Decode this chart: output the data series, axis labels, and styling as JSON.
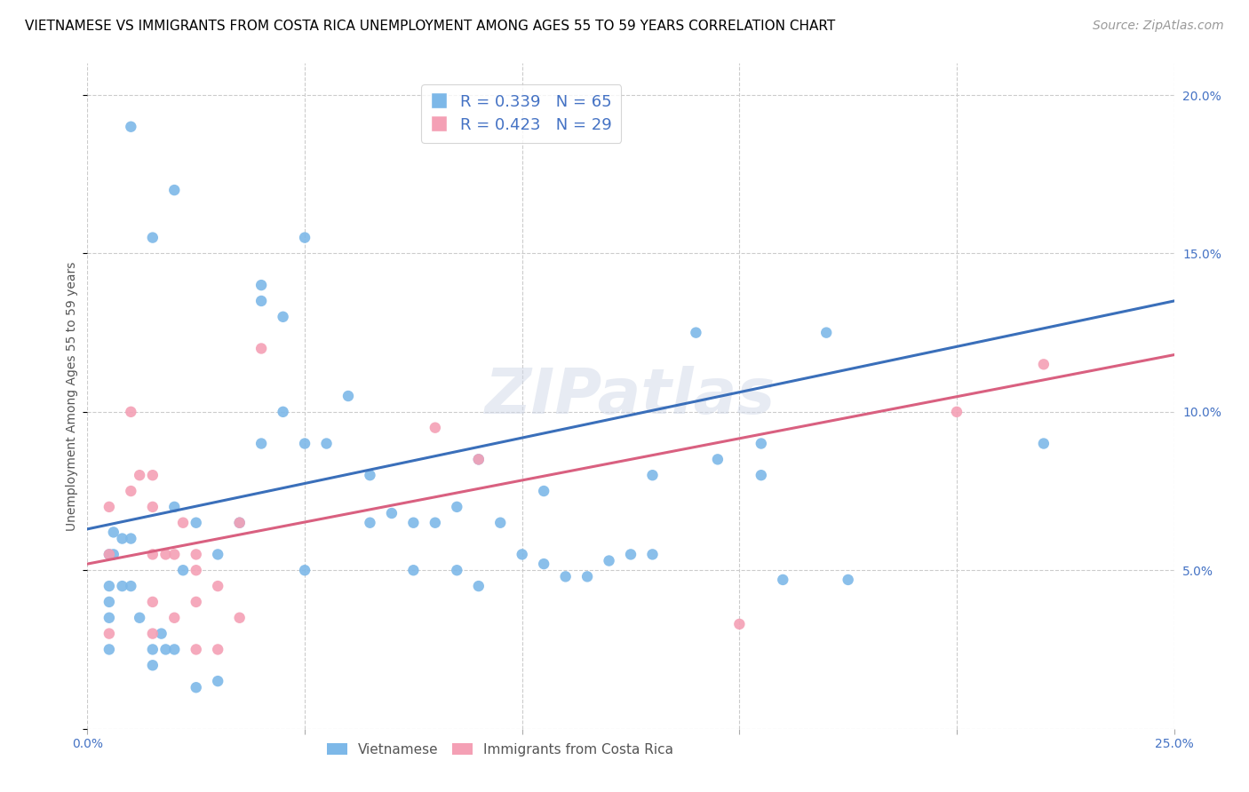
{
  "title": "VIETNAMESE VS IMMIGRANTS FROM COSTA RICA UNEMPLOYMENT AMONG AGES 55 TO 59 YEARS CORRELATION CHART",
  "source": "Source: ZipAtlas.com",
  "ylabel": "Unemployment Among Ages 55 to 59 years",
  "xlim": [
    0.0,
    0.25
  ],
  "ylim": [
    0.0,
    0.21
  ],
  "xticks": [
    0.0,
    0.05,
    0.1,
    0.15,
    0.2,
    0.25
  ],
  "yticks": [
    0.0,
    0.05,
    0.1,
    0.15,
    0.2
  ],
  "watermark": "ZIPatlas",
  "legend_r1": "R = 0.339",
  "legend_n1": "N = 65",
  "legend_r2": "R = 0.423",
  "legend_n2": "N = 29",
  "legend1_label": "Vietnamese",
  "legend2_label": "Immigrants from Costa Rica",
  "color_blue": "#7db8e8",
  "color_pink": "#f4a0b5",
  "line_blue": "#3a6fba",
  "line_pink": "#d96080",
  "blue_x": [
    0.01,
    0.02,
    0.015,
    0.03,
    0.035,
    0.04,
    0.04,
    0.045,
    0.05,
    0.055,
    0.06,
    0.065,
    0.065,
    0.07,
    0.075,
    0.075,
    0.08,
    0.085,
    0.085,
    0.09,
    0.09,
    0.095,
    0.1,
    0.105,
    0.105,
    0.11,
    0.115,
    0.12,
    0.125,
    0.13,
    0.145,
    0.155,
    0.16,
    0.175,
    0.005,
    0.005,
    0.005,
    0.005,
    0.005,
    0.006,
    0.006,
    0.008,
    0.008,
    0.01,
    0.01,
    0.012,
    0.015,
    0.015,
    0.017,
    0.018,
    0.02,
    0.02,
    0.022,
    0.025,
    0.03,
    0.025,
    0.04,
    0.045,
    0.05,
    0.05,
    0.14,
    0.13,
    0.155,
    0.17,
    0.22
  ],
  "blue_y": [
    0.19,
    0.17,
    0.155,
    0.055,
    0.065,
    0.09,
    0.135,
    0.1,
    0.09,
    0.09,
    0.105,
    0.065,
    0.08,
    0.068,
    0.065,
    0.05,
    0.065,
    0.07,
    0.05,
    0.045,
    0.085,
    0.065,
    0.055,
    0.052,
    0.075,
    0.048,
    0.048,
    0.053,
    0.055,
    0.055,
    0.085,
    0.08,
    0.047,
    0.047,
    0.055,
    0.045,
    0.04,
    0.035,
    0.025,
    0.055,
    0.062,
    0.06,
    0.045,
    0.06,
    0.045,
    0.035,
    0.025,
    0.02,
    0.03,
    0.025,
    0.07,
    0.025,
    0.05,
    0.065,
    0.015,
    0.013,
    0.14,
    0.13,
    0.155,
    0.05,
    0.125,
    0.08,
    0.09,
    0.125,
    0.09
  ],
  "pink_x": [
    0.005,
    0.005,
    0.005,
    0.01,
    0.01,
    0.012,
    0.015,
    0.015,
    0.015,
    0.015,
    0.015,
    0.018,
    0.02,
    0.02,
    0.022,
    0.025,
    0.025,
    0.025,
    0.025,
    0.03,
    0.03,
    0.035,
    0.035,
    0.04,
    0.08,
    0.09,
    0.2,
    0.22,
    0.15
  ],
  "pink_y": [
    0.07,
    0.055,
    0.03,
    0.1,
    0.075,
    0.08,
    0.08,
    0.07,
    0.055,
    0.04,
    0.03,
    0.055,
    0.055,
    0.035,
    0.065,
    0.055,
    0.05,
    0.04,
    0.025,
    0.045,
    0.025,
    0.065,
    0.035,
    0.12,
    0.095,
    0.085,
    0.1,
    0.115,
    0.033
  ],
  "blue_line_x": [
    0.0,
    0.25
  ],
  "blue_line_y": [
    0.063,
    0.135
  ],
  "pink_line_x": [
    0.0,
    0.25
  ],
  "pink_line_y": [
    0.052,
    0.118
  ],
  "title_fontsize": 11,
  "axis_label_fontsize": 10,
  "tick_fontsize": 10,
  "legend_fontsize": 13,
  "source_fontsize": 10,
  "watermark_fontsize": 52,
  "marker_size": 80,
  "background_color": "#ffffff",
  "grid_color": "#cccccc"
}
